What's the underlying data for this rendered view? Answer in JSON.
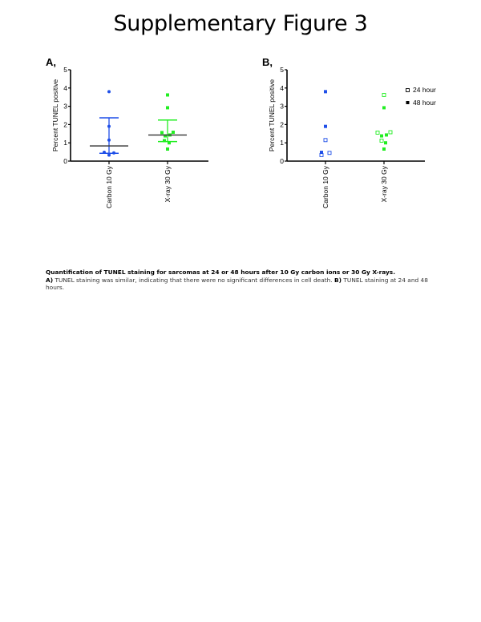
{
  "page": {
    "title": "Supplementary Figure 3",
    "caption": {
      "title": "Quantification of TUNEL staining for sarcomas at 24 or 48 hours after 10 Gy carbon ions or 30 Gy X-rays.",
      "a_label": "A)",
      "a_text": " TUNEL staining was similar, indicating that there were no significant differences in cell death. ",
      "b_label": "B)",
      "b_text": " TUNEL staining at 24 and 48 hours."
    }
  },
  "colors": {
    "carbon": "#1f4fe8",
    "xray": "#22ee22",
    "mean_line": "#333333",
    "axis": "#000000"
  },
  "chart_data": [
    {
      "panel": "A,",
      "type": "scatter",
      "title": "",
      "xlabel": "",
      "ylabel": "Percent TUNEL positive",
      "ylim": [
        0,
        5
      ],
      "yticks": [
        "0",
        "1",
        "2",
        "3",
        "4",
        "5"
      ],
      "grid": false,
      "categories": [
        "Carbon 10 Gy",
        "X-ray 30 Gy"
      ],
      "series": [
        {
          "name": "Carbon 10 Gy",
          "color": "#1f4fe8",
          "marker": "circle",
          "values": [
            3.8,
            1.9,
            1.15,
            0.48,
            0.33,
            0.45
          ],
          "mean": 0.83,
          "error_upper": 2.37,
          "error_lower": 0.43
        },
        {
          "name": "X-ray 30 Gy",
          "color": "#22ee22",
          "marker": "square",
          "values": [
            3.62,
            2.92,
            1.56,
            1.38,
            1.43,
            1.58,
            1.12,
            1.0,
            0.66
          ],
          "mean": 1.43,
          "error_upper": 2.25,
          "error_lower": 1.07
        }
      ]
    },
    {
      "panel": "B,",
      "type": "scatter",
      "title": "",
      "xlabel": "",
      "ylabel": "Percent TUNEL positive",
      "ylim": [
        0,
        5
      ],
      "yticks": [
        "0",
        "1",
        "2",
        "3",
        "4",
        "5"
      ],
      "grid": false,
      "legend": {
        "position": "right",
        "entries": [
          "24 hour",
          "48 hour"
        ]
      },
      "categories": [
        "Carbon 10 Gy",
        "X-ray 30 Gy"
      ],
      "series": [
        {
          "name": "Carbon 10 Gy - 24 hour",
          "color": "#1f4fe8",
          "filled": false,
          "values": [
            1.15,
            0.33,
            0.45
          ]
        },
        {
          "name": "Carbon 10 Gy - 48 hour",
          "color": "#1f4fe8",
          "filled": true,
          "values": [
            3.8,
            1.9,
            0.48
          ]
        },
        {
          "name": "X-ray 30 Gy - 24 hour",
          "color": "#22ee22",
          "filled": false,
          "values": [
            3.62,
            1.56,
            1.58,
            1.12
          ]
        },
        {
          "name": "X-ray 30 Gy - 48 hour",
          "color": "#22ee22",
          "filled": true,
          "values": [
            2.92,
            1.38,
            1.43,
            1.0,
            0.66
          ]
        }
      ]
    }
  ]
}
